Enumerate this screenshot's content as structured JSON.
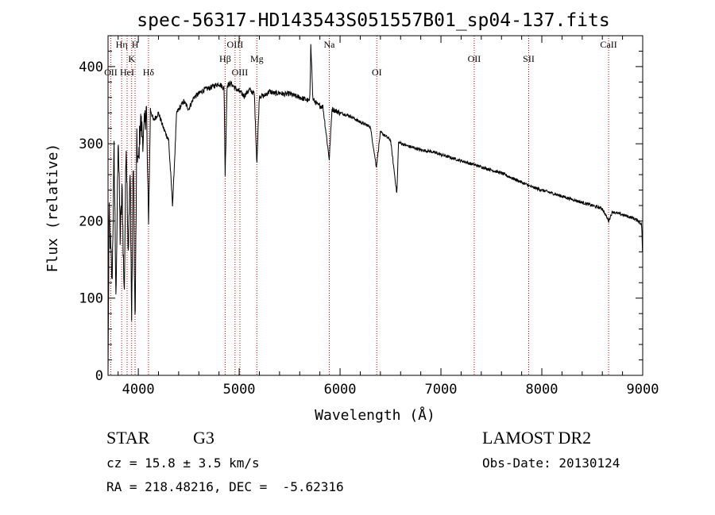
{
  "chart_data": {
    "type": "line",
    "title": "spec-56317-HD143543S051557B01_sp04-137.fits",
    "xlabel": "Wavelength (Å)",
    "ylabel": "Flux (relative)",
    "xlim": [
      3700,
      9000
    ],
    "ylim": [
      0,
      440
    ],
    "xticks": [
      4000,
      5000,
      6000,
      7000,
      8000,
      9000
    ],
    "yticks": [
      0,
      100,
      200,
      300,
      400
    ],
    "grid": false,
    "series_color": "#000000",
    "line_marker_color": "#cc0000",
    "continuum_points": [
      [
        3700,
        0
      ],
      [
        3710,
        210
      ],
      [
        3740,
        120
      ],
      [
        3760,
        290
      ],
      [
        3780,
        90
      ],
      [
        3800,
        320
      ],
      [
        3820,
        180
      ],
      [
        3840,
        240
      ],
      [
        3860,
        100
      ],
      [
        3880,
        310
      ],
      [
        3900,
        160
      ],
      [
        3920,
        260
      ],
      [
        3934,
        70
      ],
      [
        3950,
        290
      ],
      [
        3968,
        60
      ],
      [
        3985,
        300
      ],
      [
        4000,
        270
      ],
      [
        4020,
        330
      ],
      [
        4050,
        305
      ],
      [
        4080,
        350
      ],
      [
        4101,
        190
      ],
      [
        4120,
        345
      ],
      [
        4150,
        330
      ],
      [
        4200,
        340
      ],
      [
        4250,
        320
      ],
      [
        4300,
        305
      ],
      [
        4340,
        220
      ],
      [
        4380,
        340
      ],
      [
        4450,
        355
      ],
      [
        4500,
        345
      ],
      [
        4550,
        360
      ],
      [
        4600,
        365
      ],
      [
        4650,
        370
      ],
      [
        4700,
        372
      ],
      [
        4750,
        375
      ],
      [
        4800,
        378
      ],
      [
        4850,
        372
      ],
      [
        4861,
        260
      ],
      [
        4880,
        376
      ],
      [
        4920,
        378
      ],
      [
        4960,
        372
      ],
      [
        5000,
        368
      ],
      [
        5050,
        362
      ],
      [
        5100,
        370
      ],
      [
        5150,
        365
      ],
      [
        5175,
        275
      ],
      [
        5200,
        362
      ],
      [
        5250,
        362
      ],
      [
        5300,
        368
      ],
      [
        5350,
        365
      ],
      [
        5400,
        366
      ],
      [
        5450,
        364
      ],
      [
        5500,
        365
      ],
      [
        5550,
        362
      ],
      [
        5600,
        360
      ],
      [
        5650,
        358
      ],
      [
        5700,
        355
      ],
      [
        5710,
        432
      ],
      [
        5730,
        358
      ],
      [
        5780,
        350
      ],
      [
        5830,
        348
      ],
      [
        5893,
        280
      ],
      [
        5920,
        345
      ],
      [
        6000,
        340
      ],
      [
        6100,
        336
      ],
      [
        6200,
        328
      ],
      [
        6300,
        322
      ],
      [
        6360,
        270
      ],
      [
        6400,
        315
      ],
      [
        6450,
        310
      ],
      [
        6500,
        305
      ],
      [
        6563,
        235
      ],
      [
        6580,
        302
      ],
      [
        6650,
        298
      ],
      [
        6700,
        296
      ],
      [
        6800,
        292
      ],
      [
        6900,
        290
      ],
      [
        7000,
        286
      ],
      [
        7100,
        282
      ],
      [
        7200,
        278
      ],
      [
        7300,
        274
      ],
      [
        7400,
        270
      ],
      [
        7500,
        266
      ],
      [
        7600,
        262
      ],
      [
        7700,
        256
      ],
      [
        7800,
        250
      ],
      [
        7900,
        244
      ],
      [
        8000,
        240
      ],
      [
        8100,
        236
      ],
      [
        8200,
        232
      ],
      [
        8300,
        228
      ],
      [
        8400,
        224
      ],
      [
        8500,
        220
      ],
      [
        8600,
        216
      ],
      [
        8662,
        200
      ],
      [
        8700,
        212
      ],
      [
        8800,
        208
      ],
      [
        8900,
        204
      ],
      [
        8960,
        200
      ],
      [
        8990,
        195
      ],
      [
        9000,
        150
      ]
    ],
    "line_markers": [
      {
        "label": "Hη",
        "wavelength": 3835,
        "row": 0
      },
      {
        "label": "H",
        "wavelength": 3968,
        "row": 0
      },
      {
        "label": "K",
        "wavelength": 3934,
        "row": 1
      },
      {
        "label": "OII",
        "wavelength": 3727,
        "row": 3
      },
      {
        "label": "HeI",
        "wavelength": 3889,
        "row": 3
      },
      {
        "label": "Hδ",
        "wavelength": 4101,
        "row": 3
      },
      {
        "label": "OIII",
        "wavelength": 4959,
        "row": 0
      },
      {
        "label": "Hβ",
        "wavelength": 4861,
        "row": 1
      },
      {
        "label": "Mg",
        "wavelength": 5175,
        "row": 1
      },
      {
        "label": "OIII",
        "wavelength": 5007,
        "row": 2
      },
      {
        "label": "Na",
        "wavelength": 5893,
        "row": 0
      },
      {
        "label": "OI",
        "wavelength": 6364,
        "row": 2
      },
      {
        "label": "OII",
        "wavelength": 7330,
        "row": 1
      },
      {
        "label": "SII",
        "wavelength": 7870,
        "row": 1
      },
      {
        "label": "CaII",
        "wavelength": 8662,
        "row": 0
      }
    ]
  },
  "info": {
    "object_class": "STAR",
    "subclass": "G3",
    "survey": "LAMOST DR2",
    "redshift": "cz = 15.8 ± 3.5 km/s",
    "obs_date": "Obs-Date: 20130124",
    "coords": "RA = 218.48216, DEC =  -5.62316"
  }
}
